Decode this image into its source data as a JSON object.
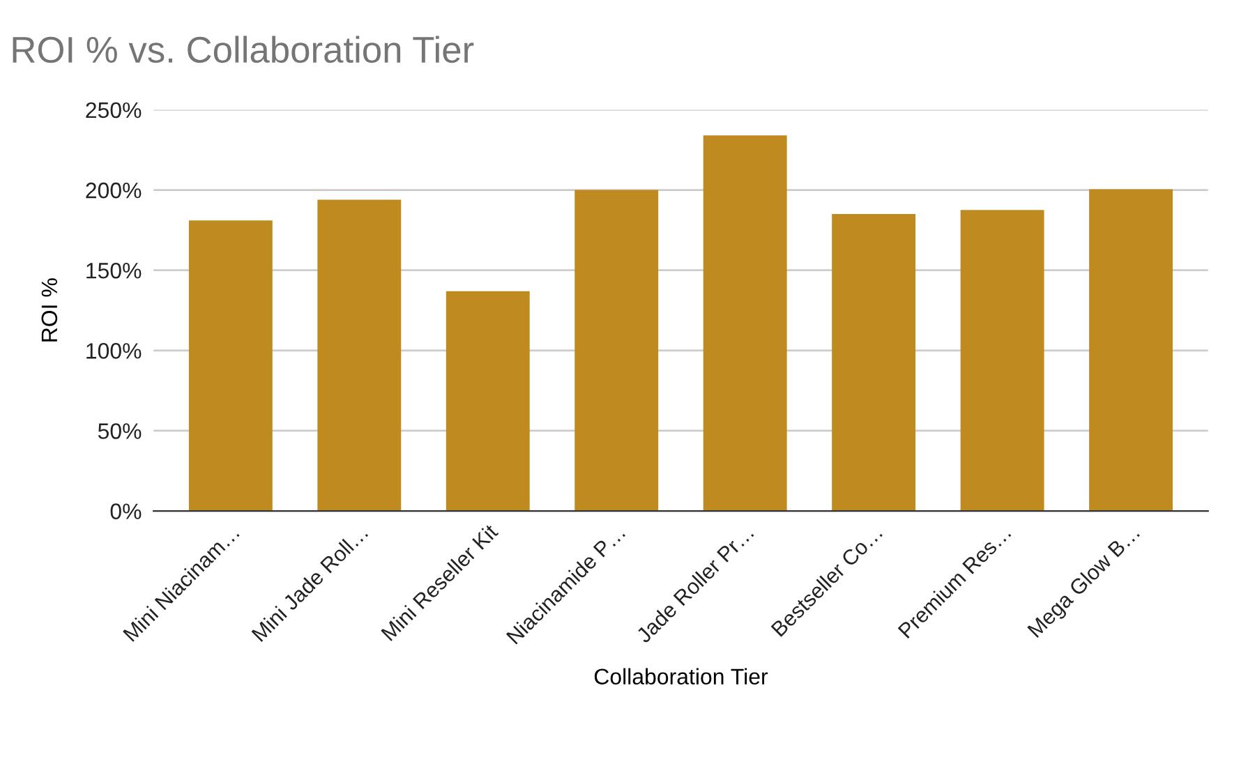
{
  "chart_data": {
    "type": "bar",
    "title": "ROI % vs. Collaboration Tier",
    "xlabel": "Collaboration Tier",
    "ylabel": "ROI %",
    "categories": [
      "Mini Niacinam…",
      "Mini Jade Roll…",
      "Mini Reseller Kit",
      "Niacinamide P…",
      "Jade Roller Pr…",
      "Bestseller Co…",
      "Premium Res…",
      "Mega Glow B…"
    ],
    "values": [
      181,
      194,
      137,
      200,
      234,
      185,
      187.5,
      200.5
    ],
    "color": "#bf8a1f",
    "ylim": [
      0,
      250
    ],
    "yticks": [
      {
        "value": 0,
        "label": "0%"
      },
      {
        "value": 50,
        "label": "50%"
      },
      {
        "value": 100,
        "label": "100%"
      },
      {
        "value": 150,
        "label": "150%"
      },
      {
        "value": 200,
        "label": "200%"
      },
      {
        "value": 250,
        "label": "250%"
      }
    ],
    "grid": "y",
    "legend": false
  }
}
